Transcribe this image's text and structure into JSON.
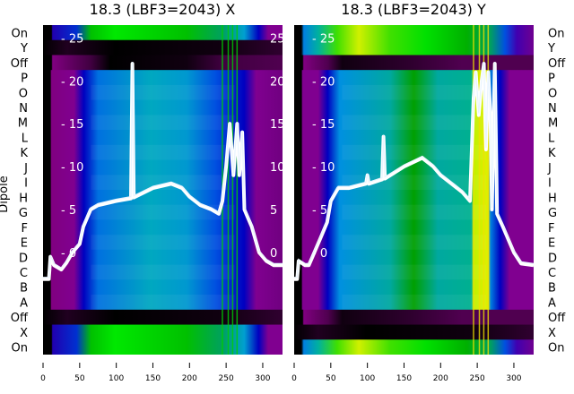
{
  "chart_data": [
    {
      "type": "heatmap",
      "title": "18.3 (LBF3=2043) X",
      "ylabel": "Dipole",
      "row_labels": [
        "On",
        "Y",
        "Off",
        "P",
        "O",
        "N",
        "M",
        "L",
        "K",
        "J",
        "I",
        "H",
        "G",
        "F",
        "E",
        "D",
        "C",
        "B",
        "A",
        "Off",
        "X",
        "On"
      ],
      "x_ticks": [
        0,
        50,
        100,
        150,
        200,
        250,
        300
      ],
      "xlim": [
        0,
        327
      ],
      "overlay_y_ticks": [
        0,
        5,
        10,
        15,
        20,
        25
      ],
      "overlay_ylim": [
        -11.9,
        26.5
      ],
      "overlay_line": [
        [
          0,
          -3.1
        ],
        [
          8,
          -3.1
        ],
        [
          10,
          -0.5
        ],
        [
          15,
          -1.5
        ],
        [
          25,
          -2
        ],
        [
          32,
          -1.2
        ],
        [
          40,
          0
        ],
        [
          50,
          1
        ],
        [
          55,
          3
        ],
        [
          60,
          4
        ],
        [
          65,
          5
        ],
        [
          75,
          5.5
        ],
        [
          100,
          6
        ],
        [
          120,
          6.3
        ],
        [
          122,
          22
        ],
        [
          124,
          6.4
        ],
        [
          150,
          7.5
        ],
        [
          175,
          8
        ],
        [
          190,
          7.5
        ],
        [
          200,
          6.5
        ],
        [
          215,
          5.5
        ],
        [
          230,
          5
        ],
        [
          240,
          4.5
        ],
        [
          245,
          6
        ],
        [
          250,
          10
        ],
        [
          255,
          15
        ],
        [
          260,
          9
        ],
        [
          265,
          15
        ],
        [
          268,
          9
        ],
        [
          272,
          14
        ],
        [
          275,
          5
        ],
        [
          280,
          4
        ],
        [
          285,
          3
        ],
        [
          295,
          0
        ],
        [
          305,
          -1
        ],
        [
          315,
          -1.5
        ],
        [
          327,
          -1.5
        ]
      ]
    },
    {
      "type": "heatmap",
      "title": "18.3 (LBF3=2043) Y",
      "row_labels": [
        "On",
        "Y",
        "Off",
        "P",
        "O",
        "N",
        "M",
        "L",
        "K",
        "J",
        "I",
        "H",
        "G",
        "F",
        "E",
        "D",
        "C",
        "B",
        "A",
        "Off",
        "X",
        "On"
      ],
      "x_ticks": [
        0,
        50,
        100,
        150,
        200,
        250,
        300
      ],
      "xlim": [
        0,
        327
      ],
      "overlay_y_ticks": [
        0,
        5,
        10,
        15,
        20,
        25
      ],
      "overlay_ylim": [
        -11.9,
        26.5
      ],
      "overlay_line": [
        [
          0,
          -3.1
        ],
        [
          4,
          -3.1
        ],
        [
          6,
          -1
        ],
        [
          15,
          -1.5
        ],
        [
          20,
          -1.5
        ],
        [
          25,
          -0.5
        ],
        [
          35,
          1.5
        ],
        [
          45,
          3.5
        ],
        [
          50,
          6
        ],
        [
          60,
          7.5
        ],
        [
          75,
          7.5
        ],
        [
          98,
          8
        ],
        [
          100,
          9
        ],
        [
          102,
          8
        ],
        [
          120,
          8.5
        ],
        [
          122,
          13.5
        ],
        [
          124,
          8.6
        ],
        [
          150,
          10
        ],
        [
          175,
          11
        ],
        [
          190,
          10
        ],
        [
          200,
          9
        ],
        [
          215,
          8
        ],
        [
          230,
          7
        ],
        [
          240,
          6
        ],
        [
          245,
          18
        ],
        [
          248,
          21
        ],
        [
          252,
          16
        ],
        [
          256,
          20
        ],
        [
          259,
          22
        ],
        [
          262,
          12
        ],
        [
          265,
          21
        ],
        [
          268,
          16
        ],
        [
          270,
          5
        ],
        [
          274,
          22
        ],
        [
          277,
          4.5
        ],
        [
          285,
          3
        ],
        [
          300,
          0
        ],
        [
          310,
          -1.3
        ],
        [
          327,
          -1.5
        ]
      ]
    }
  ]
}
